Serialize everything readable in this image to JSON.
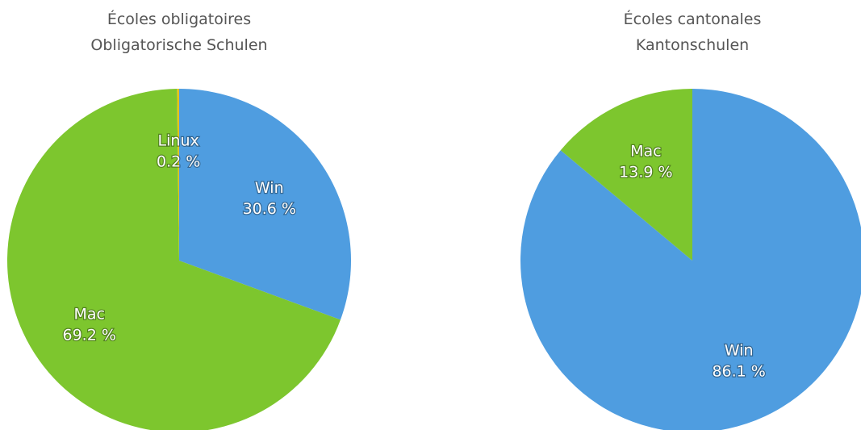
{
  "chart_data": [
    {
      "type": "pie",
      "title": "Écoles obligatoires",
      "subtitle": "Obligatorische Schulen",
      "categories": [
        "Win",
        "Mac",
        "Linux"
      ],
      "values": [
        30.6,
        69.2,
        0.2
      ],
      "value_labels": [
        "30.6 %",
        "69.2 %",
        "0.2 %"
      ],
      "colors": [
        "#4f9de0",
        "#7dc62e",
        "#e3c21c"
      ]
    },
    {
      "type": "pie",
      "title": "Écoles cantonales",
      "subtitle": "Kantonschulen",
      "categories": [
        "Win",
        "Mac"
      ],
      "values": [
        86.1,
        13.9
      ],
      "value_labels": [
        "86.1 %",
        "13.9 %"
      ],
      "colors": [
        "#4f9de0",
        "#7dc62e"
      ]
    }
  ]
}
